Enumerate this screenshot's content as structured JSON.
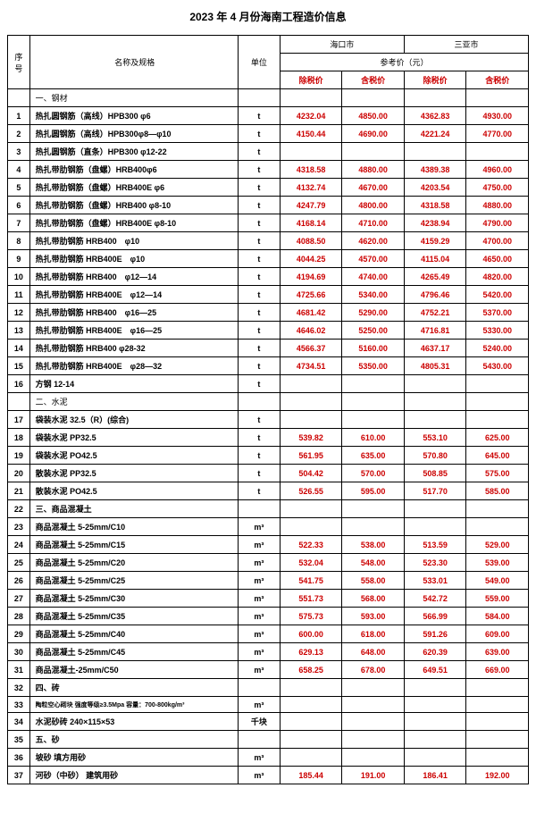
{
  "title": "2023 年 4 月份海南工程造价信息",
  "headers": {
    "seq": "序号",
    "name": "名称及规格",
    "unit": "单位",
    "city1": "海口市",
    "city2": "三亚市",
    "refPrice": "参考价（元）",
    "exTax": "除税价",
    "inTax": "含税价"
  },
  "rows": [
    {
      "num": "",
      "name": "一、钢材",
      "unit": "",
      "p1": "",
      "p2": "",
      "p3": "",
      "p4": "",
      "section": true
    },
    {
      "num": "1",
      "name": "热扎圆钢筋（高线）HPB300 φ6",
      "unit": "t",
      "p1": "4232.04",
      "p2": "4850.00",
      "p3": "4362.83",
      "p4": "4930.00",
      "bold": true
    },
    {
      "num": "2",
      "name": "热扎圆钢筋（高线）HPB300φ8—φ10",
      "unit": "t",
      "p1": "4150.44",
      "p2": "4690.00",
      "p3": "4221.24",
      "p4": "4770.00",
      "bold": true
    },
    {
      "num": "3",
      "name": "热扎圆钢筋（直条）HPB300 φ12-22",
      "unit": "t",
      "p1": "",
      "p2": "",
      "p3": "",
      "p4": "",
      "bold": true
    },
    {
      "num": "4",
      "name": "热扎带肋钢筋（盘螺）HRB400φ6",
      "unit": "t",
      "p1": "4318.58",
      "p2": "4880.00",
      "p3": "4389.38",
      "p4": "4960.00",
      "bold": true
    },
    {
      "num": "5",
      "name": "热扎带肋钢筋（盘螺）HRB400E φ6",
      "unit": "t",
      "p1": "4132.74",
      "p2": "4670.00",
      "p3": "4203.54",
      "p4": "4750.00",
      "bold": true
    },
    {
      "num": "6",
      "name": "热扎带肋钢筋（盘螺）HRB400 φ8-10",
      "unit": "t",
      "p1": "4247.79",
      "p2": "4800.00",
      "p3": "4318.58",
      "p4": "4880.00",
      "bold": true
    },
    {
      "num": "7",
      "name": "热扎带肋钢筋（盘螺）HRB400E φ8-10",
      "unit": "t",
      "p1": "4168.14",
      "p2": "4710.00",
      "p3": "4238.94",
      "p4": "4790.00",
      "bold": true
    },
    {
      "num": "8",
      "name": "热扎带肋钢筋  HRB400　φ10",
      "unit": "t",
      "p1": "4088.50",
      "p2": "4620.00",
      "p3": "4159.29",
      "p4": "4700.00",
      "bold": true
    },
    {
      "num": "9",
      "name": "热扎带肋钢筋  HRB400E　φ10",
      "unit": "t",
      "p1": "4044.25",
      "p2": "4570.00",
      "p3": "4115.04",
      "p4": "4650.00",
      "bold": true
    },
    {
      "num": "10",
      "name": "热扎带肋钢筋  HRB400　φ12—14",
      "unit": "t",
      "p1": "4194.69",
      "p2": "4740.00",
      "p3": "4265.49",
      "p4": "4820.00",
      "bold": true
    },
    {
      "num": "11",
      "name": "热扎带肋钢筋  HRB400E　φ12—14",
      "unit": "t",
      "p1": "4725.66",
      "p2": "5340.00",
      "p3": "4796.46",
      "p4": "5420.00",
      "bold": true
    },
    {
      "num": "12",
      "name": "热扎带肋钢筋  HRB400　φ16—25",
      "unit": "t",
      "p1": "4681.42",
      "p2": "5290.00",
      "p3": "4752.21",
      "p4": "5370.00",
      "bold": true
    },
    {
      "num": "13",
      "name": "热扎带肋钢筋  HRB400E　φ16—25",
      "unit": "t",
      "p1": "4646.02",
      "p2": "5250.00",
      "p3": "4716.81",
      "p4": "5330.00",
      "bold": true
    },
    {
      "num": "14",
      "name": "热扎带肋钢筋  HRB400   φ28-32",
      "unit": "t",
      "p1": "4566.37",
      "p2": "5160.00",
      "p3": "4637.17",
      "p4": "5240.00",
      "bold": true
    },
    {
      "num": "15",
      "name": "热扎带肋钢筋  HRB400E　φ28—32",
      "unit": "t",
      "p1": "4734.51",
      "p2": "5350.00",
      "p3": "4805.31",
      "p4": "5430.00",
      "bold": true
    },
    {
      "num": "16",
      "name": "方钢   12-14",
      "unit": "t",
      "p1": "",
      "p2": "",
      "p3": "",
      "p4": "",
      "bold": true
    },
    {
      "num": "",
      "name": "二、水泥",
      "unit": "",
      "p1": "",
      "p2": "",
      "p3": "",
      "p4": "",
      "section": true
    },
    {
      "num": "17",
      "name": "袋装水泥 32.5（R）(综合)",
      "unit": "t",
      "p1": "",
      "p2": "",
      "p3": "",
      "p4": "",
      "bold": true
    },
    {
      "num": "18",
      "name": "袋装水泥 PP32.5",
      "unit": "t",
      "p1": "539.82",
      "p2": "610.00",
      "p3": "553.10",
      "p4": "625.00",
      "bold": true
    },
    {
      "num": "19",
      "name": "袋装水泥 PO42.5",
      "unit": "t",
      "p1": "561.95",
      "p2": "635.00",
      "p3": "570.80",
      "p4": "645.00",
      "bold": true
    },
    {
      "num": "20",
      "name": "散装水泥 PP32.5",
      "unit": "t",
      "p1": "504.42",
      "p2": "570.00",
      "p3": "508.85",
      "p4": "575.00",
      "bold": true
    },
    {
      "num": "21",
      "name": "散装水泥 PO42.5",
      "unit": "t",
      "p1": "526.55",
      "p2": "595.00",
      "p3": "517.70",
      "p4": "585.00",
      "bold": true
    },
    {
      "num": "22",
      "name": "三、商品混凝土",
      "unit": "",
      "p1": "",
      "p2": "",
      "p3": "",
      "p4": "",
      "bold": true
    },
    {
      "num": "23",
      "name": "商品混凝土 5-25mm/C10",
      "unit": "m³",
      "p1": "",
      "p2": "",
      "p3": "",
      "p4": "",
      "bold": true
    },
    {
      "num": "24",
      "name": "商品混凝土 5-25mm/C15",
      "unit": "m³",
      "p1": "522.33",
      "p2": "538.00",
      "p3": "513.59",
      "p4": "529.00",
      "bold": true
    },
    {
      "num": "25",
      "name": "商品混凝土 5-25mm/C20",
      "unit": "m³",
      "p1": "532.04",
      "p2": "548.00",
      "p3": "523.30",
      "p4": "539.00",
      "bold": true
    },
    {
      "num": "26",
      "name": "商品混凝土 5-25mm/C25",
      "unit": "m³",
      "p1": "541.75",
      "p2": "558.00",
      "p3": "533.01",
      "p4": "549.00",
      "bold": true
    },
    {
      "num": "27",
      "name": "商品混凝土 5-25mm/C30",
      "unit": "m³",
      "p1": "551.73",
      "p2": "568.00",
      "p3": "542.72",
      "p4": "559.00",
      "bold": true
    },
    {
      "num": "28",
      "name": "商品混凝土 5-25mm/C35",
      "unit": "m³",
      "p1": "575.73",
      "p2": "593.00",
      "p3": "566.99",
      "p4": "584.00",
      "bold": true
    },
    {
      "num": "29",
      "name": "商品混凝土 5-25mm/C40",
      "unit": "m³",
      "p1": "600.00",
      "p2": "618.00",
      "p3": "591.26",
      "p4": "609.00",
      "bold": true
    },
    {
      "num": "30",
      "name": "商品混凝土 5-25mm/C45",
      "unit": "m³",
      "p1": "629.13",
      "p2": "648.00",
      "p3": "620.39",
      "p4": "639.00",
      "bold": true
    },
    {
      "num": "31",
      "name": "商品混凝土-25mm/C50",
      "unit": "m³",
      "p1": "658.25",
      "p2": "678.00",
      "p3": "649.51",
      "p4": "669.00",
      "bold": true
    },
    {
      "num": "32",
      "name": "四、砖",
      "unit": "",
      "p1": "",
      "p2": "",
      "p3": "",
      "p4": "",
      "bold": true
    },
    {
      "num": "33",
      "name": "陶粒空心砌块  强度等级≥3.5Mpa  容量：700-800kg/m³",
      "unit": "m³",
      "p1": "",
      "p2": "",
      "p3": "",
      "p4": "",
      "bold": true,
      "small": true
    },
    {
      "num": "34",
      "name": "水泥砂砖  240×115×53",
      "unit": "千块",
      "p1": "",
      "p2": "",
      "p3": "",
      "p4": "",
      "bold": true
    },
    {
      "num": "35",
      "name": "五、砂",
      "unit": "",
      "p1": "",
      "p2": "",
      "p3": "",
      "p4": "",
      "bold": true
    },
    {
      "num": "36",
      "name": "坡砂  填方用砂",
      "unit": "m³",
      "p1": "",
      "p2": "",
      "p3": "",
      "p4": "",
      "bold": true
    },
    {
      "num": "37",
      "name": "河砂（中砂）  建筑用砂",
      "unit": "m³",
      "p1": "185.44",
      "p2": "191.00",
      "p3": "186.41",
      "p4": "192.00",
      "bold": true
    }
  ]
}
